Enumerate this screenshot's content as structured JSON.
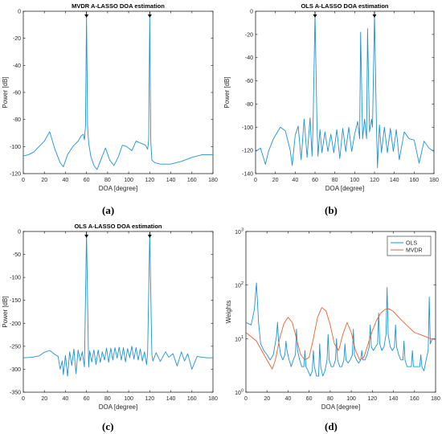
{
  "figure_labels": [
    "(a)",
    "(b)",
    "(c)",
    "(d)"
  ],
  "chart_data": [
    {
      "id": "a",
      "type": "line",
      "title": "MVDR A-LASSO DOA estimation",
      "xlabel": "DOA [degree]",
      "ylabel": "Power [dB]",
      "xlim": [
        0,
        180
      ],
      "ylim": [
        -120,
        0
      ],
      "xticks": [
        0,
        20,
        40,
        60,
        80,
        100,
        120,
        140,
        160,
        180
      ],
      "yticks": [
        -120,
        -100,
        -80,
        -60,
        -40,
        -20,
        0
      ],
      "grid": false,
      "line_color": "#1f93d1",
      "markers": [
        60,
        120
      ],
      "series": [
        {
          "x": [
            0,
            5,
            10,
            15,
            20,
            25,
            30,
            35,
            38,
            42,
            47,
            52,
            55,
            57,
            58,
            59,
            60,
            61,
            62,
            64,
            67,
            70,
            73,
            78,
            82,
            86,
            90,
            94,
            98,
            103,
            107,
            110,
            113,
            116,
            118,
            119,
            120,
            121,
            122,
            125,
            130,
            140,
            150,
            160,
            170,
            180
          ],
          "y": [
            -107,
            -106,
            -104,
            -100,
            -96,
            -89,
            -102,
            -112,
            -115,
            -106,
            -100,
            -96,
            -92,
            -91,
            -95,
            -85,
            -3,
            -85,
            -97,
            -107,
            -114,
            -117,
            -111,
            -101,
            -110,
            -114,
            -108,
            -99,
            -100,
            -103,
            -96,
            -97,
            -98,
            -99,
            -102,
            -95,
            -3,
            -96,
            -110,
            -112,
            -113,
            -113,
            -111,
            -108,
            -106,
            -106
          ]
        }
      ]
    },
    {
      "id": "b",
      "type": "line",
      "title": "OLS A-LASSO DOA estimation",
      "xlabel": "DOA [degree]",
      "ylabel": "Power [dB]",
      "xlim": [
        0,
        180
      ],
      "ylim": [
        -140,
        0
      ],
      "xticks": [
        0,
        20,
        40,
        60,
        80,
        100,
        120,
        140,
        160,
        180
      ],
      "yticks": [
        -140,
        -120,
        -100,
        -80,
        -60,
        -40,
        -20,
        0
      ],
      "grid": false,
      "line_color": "#1f93d1",
      "markers": [
        60,
        120
      ],
      "series": [
        {
          "x": [
            0,
            5,
            10,
            13,
            18,
            25,
            30,
            35,
            37,
            40,
            43,
            46,
            49,
            52,
            55,
            57,
            58,
            60,
            62,
            63,
            65,
            67,
            70,
            73,
            76,
            79,
            82,
            85,
            88,
            91,
            94,
            97,
            100,
            103,
            105,
            106,
            108,
            110,
            112,
            113,
            115,
            117,
            118,
            120,
            122,
            123,
            125,
            127,
            130,
            133,
            136,
            139,
            142,
            145,
            150,
            155,
            160,
            165,
            170,
            175,
            180
          ],
          "y": [
            -121,
            -118,
            -132,
            -121,
            -110,
            -100,
            -103,
            -120,
            -133,
            -107,
            -99,
            -128,
            -93,
            -126,
            -92,
            -125,
            -99,
            -2,
            -99,
            -125,
            -102,
            -122,
            -104,
            -121,
            -106,
            -122,
            -102,
            -127,
            -101,
            -121,
            -100,
            -121,
            -106,
            -95,
            -110,
            -18,
            -110,
            -93,
            -110,
            -15,
            -104,
            -93,
            -100,
            -2,
            -100,
            -135,
            -98,
            -122,
            -100,
            -122,
            -101,
            -121,
            -102,
            -128,
            -104,
            -110,
            -111,
            -131,
            -112,
            -118,
            -121
          ]
        }
      ]
    },
    {
      "id": "c",
      "type": "line",
      "title": "OLS A-LASSO DOA estimation",
      "xlabel": "DOA [degree]",
      "ylabel": "Power [dB]",
      "xlim": [
        0,
        180
      ],
      "ylim": [
        -350,
        0
      ],
      "xticks": [
        0,
        20,
        40,
        60,
        80,
        100,
        120,
        140,
        160,
        180
      ],
      "yticks": [
        -350,
        -300,
        -250,
        -200,
        -150,
        -100,
        -50,
        0
      ],
      "grid": false,
      "line_color": "#1f93d1",
      "markers": [
        60,
        120
      ],
      "series": [
        {
          "x": [
            0,
            8,
            15,
            20,
            25,
            30,
            33,
            35,
            37,
            38,
            40,
            42,
            44,
            46,
            48,
            50,
            52,
            54,
            56,
            58,
            60,
            62,
            63,
            65,
            67,
            69,
            71,
            73,
            75,
            77,
            79,
            81,
            83,
            85,
            87,
            89,
            91,
            93,
            95,
            97,
            99,
            101,
            103,
            105,
            107,
            109,
            111,
            113,
            115,
            117,
            118,
            120,
            122,
            123,
            126,
            130,
            135,
            138,
            142,
            146,
            150,
            153,
            156,
            160,
            165,
            170,
            175,
            180
          ],
          "y": [
            -275,
            -274,
            -271,
            -263,
            -259,
            -268,
            -272,
            -300,
            -282,
            -312,
            -270,
            -315,
            -262,
            -292,
            -256,
            -310,
            -258,
            -282,
            -262,
            -295,
            -3,
            -295,
            -260,
            -284,
            -258,
            -290,
            -258,
            -285,
            -262,
            -280,
            -254,
            -285,
            -254,
            -280,
            -253,
            -276,
            -252,
            -280,
            -253,
            -284,
            -255,
            -275,
            -250,
            -278,
            -253,
            -280,
            -256,
            -282,
            -262,
            -290,
            -263,
            -3,
            -268,
            -282,
            -264,
            -283,
            -262,
            -274,
            -266,
            -293,
            -262,
            -282,
            -266,
            -300,
            -272,
            -274,
            -275,
            -275
          ]
        }
      ]
    },
    {
      "id": "d",
      "type": "line",
      "title": "",
      "xlabel": "DOA [degree]",
      "ylabel": "Weights",
      "xlim": [
        0,
        180
      ],
      "ylim": [
        1,
        1000
      ],
      "yscale": "log",
      "xticks": [
        0,
        20,
        40,
        60,
        80,
        100,
        120,
        140,
        160,
        180
      ],
      "yticks": [
        1,
        10,
        100,
        1000
      ],
      "ytick_labels": [
        "10^0",
        "10^1",
        "10^2",
        "10^3"
      ],
      "grid": false,
      "legend": "top-right",
      "series": [
        {
          "name": "OLS",
          "color": "#1f93d1",
          "x": [
            0,
            5,
            8,
            10,
            12,
            14,
            17,
            20,
            23,
            26,
            29,
            30,
            31,
            33,
            35,
            37,
            38,
            39,
            41,
            43,
            45,
            47,
            48,
            49,
            51,
            53,
            55,
            56,
            57,
            59,
            61,
            63,
            64,
            65,
            67,
            69,
            70,
            71,
            73,
            75,
            77,
            78,
            79,
            81,
            83,
            85,
            86,
            87,
            89,
            91,
            93,
            94,
            95,
            97,
            99,
            101,
            102,
            103,
            105,
            107,
            109,
            110,
            111,
            113,
            115,
            117,
            118,
            119,
            121,
            123,
            125,
            126,
            127,
            129,
            131,
            133,
            134,
            135,
            137,
            139,
            141,
            142,
            143,
            145,
            147,
            149,
            150,
            151,
            153,
            155,
            157,
            158,
            159,
            161,
            163,
            165,
            166,
            167,
            169,
            171,
            173,
            174,
            175,
            177,
            180
          ],
          "y": [
            20,
            18,
            35,
            110,
            20,
            8,
            6,
            5,
            4,
            5,
            11,
            20,
            9,
            5,
            4,
            5,
            9,
            6,
            4,
            3,
            4,
            5,
            15,
            6,
            4,
            3,
            3,
            6,
            3,
            2.5,
            2,
            2.5,
            6,
            3,
            2,
            2,
            8,
            3,
            2,
            2.5,
            4,
            12,
            4,
            3,
            3,
            4,
            10,
            4,
            3,
            3,
            4,
            8,
            4,
            3.5,
            4,
            5,
            15,
            5,
            4,
            3.5,
            4,
            6,
            4,
            4,
            5,
            7,
            18,
            7,
            6,
            7,
            8,
            30,
            8,
            6,
            7,
            12,
            90,
            12,
            7,
            6,
            7,
            18,
            7,
            5,
            4,
            4,
            9,
            4,
            3,
            3,
            3,
            6,
            3,
            3,
            3,
            3,
            5,
            3,
            2.5,
            4,
            6,
            60,
            8,
            10,
            10
          ]
        },
        {
          "name": "MVDR",
          "color": "#e8622b",
          "x": [
            0,
            10,
            15,
            20,
            25,
            28,
            32,
            36,
            40,
            44,
            48,
            52,
            56,
            60,
            64,
            68,
            72,
            76,
            80,
            84,
            88,
            92,
            96,
            100,
            104,
            108,
            112,
            116,
            120,
            124,
            128,
            132,
            136,
            140,
            145,
            150,
            155,
            160,
            165,
            170,
            175,
            180
          ],
          "y": [
            13,
            9,
            6,
            4,
            2.7,
            4,
            10,
            19,
            25,
            20,
            10,
            5,
            4,
            4.5,
            10,
            25,
            38,
            33,
            18,
            8,
            6,
            12,
            20,
            13,
            6,
            4,
            4.5,
            8,
            14,
            22,
            30,
            35,
            36,
            32,
            25,
            20,
            16,
            13,
            12,
            11,
            10,
            9.5
          ]
        }
      ]
    }
  ]
}
